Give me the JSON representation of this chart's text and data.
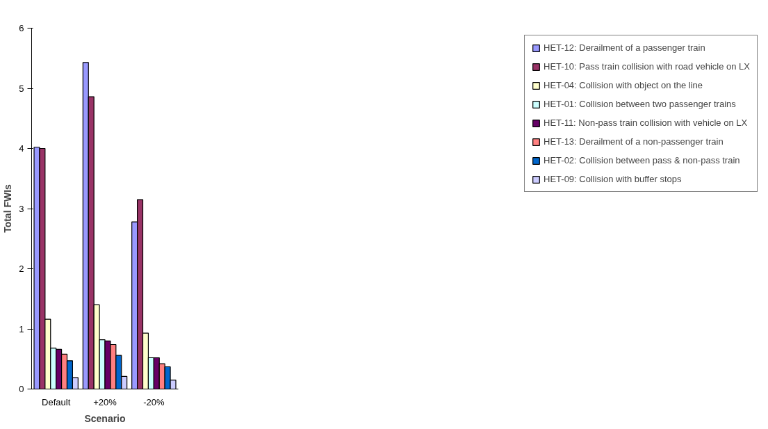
{
  "chart_data": {
    "type": "bar",
    "xlabel": "Scenario",
    "ylabel": "Total FWIs",
    "categories": [
      "Default",
      "+20%",
      "-20%"
    ],
    "series": [
      {
        "name": "HET-12: Derailment of a passenger train",
        "color": "#9999ff",
        "values": [
          4.02,
          5.43,
          2.78
        ]
      },
      {
        "name": "HET-10: Pass train collision with road vehicle on LX",
        "color": "#993366",
        "values": [
          4.0,
          4.86,
          3.15
        ]
      },
      {
        "name": "HET-04: Collision with object on the line",
        "color": "#ffffcc",
        "values": [
          1.16,
          1.4,
          0.93
        ]
      },
      {
        "name": "HET-01: Collision between two passenger trains",
        "color": "#ccffff",
        "values": [
          0.68,
          0.82,
          0.52
        ]
      },
      {
        "name": "HET-11: Non-pass train collision with vehicle on LX",
        "color": "#660066",
        "values": [
          0.66,
          0.8,
          0.52
        ]
      },
      {
        "name": "HET-13: Derailment of a non-passenger train",
        "color": "#ff8080",
        "values": [
          0.58,
          0.74,
          0.42
        ]
      },
      {
        "name": "HET-02: Collision between pass & non-pass train",
        "color": "#0066cc",
        "values": [
          0.47,
          0.56,
          0.37
        ]
      },
      {
        "name": "HET-09: Collision with buffer stops",
        "color": "#ccccff",
        "values": [
          0.19,
          0.21,
          0.15
        ]
      }
    ],
    "ylim": [
      0,
      6
    ],
    "yticks": [
      0,
      1,
      2,
      3,
      4,
      5,
      6
    ],
    "grid": false,
    "legend": "right"
  }
}
